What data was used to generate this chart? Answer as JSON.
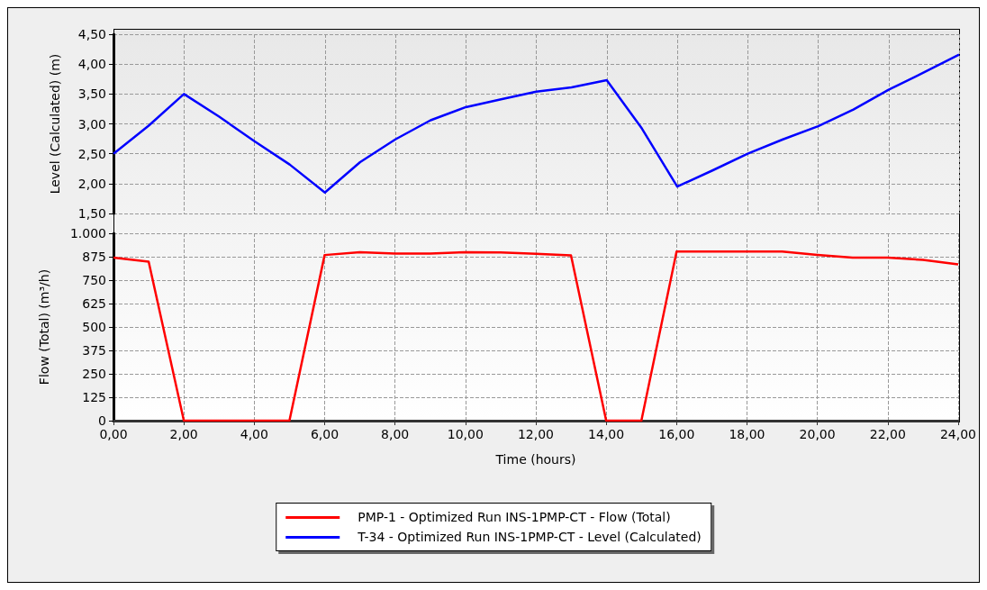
{
  "chart_data": [
    {
      "type": "line",
      "ylabel": "Level (Calculated) (m)",
      "x": [
        0,
        1,
        2,
        3,
        4,
        5,
        6,
        7,
        8,
        9,
        10,
        11,
        12,
        13,
        14,
        15,
        16,
        17,
        18,
        19,
        20,
        21,
        22,
        23,
        24
      ],
      "series": [
        {
          "name": "T-34 - Optimized Run INS-1PMP-CT - Level (Calculated)",
          "color": "#0000ff",
          "values": [
            2.5,
            2.97,
            3.5,
            3.12,
            2.71,
            2.32,
            1.85,
            2.36,
            2.74,
            3.06,
            3.28,
            3.41,
            3.54,
            3.61,
            3.73,
            2.92,
            1.95,
            2.22,
            2.5,
            2.74,
            2.96,
            3.24,
            3.57,
            3.86,
            4.16
          ]
        }
      ],
      "xlim": [
        0,
        24
      ],
      "ylim": [
        1.5,
        4.5
      ],
      "yticks": [
        {
          "value": 1.5,
          "label": "1,50"
        },
        {
          "value": 2,
          "label": "2,00"
        },
        {
          "value": 2.5,
          "label": "2,50"
        },
        {
          "value": 3,
          "label": "3,00"
        },
        {
          "value": 3.5,
          "label": "3,50"
        },
        {
          "value": 4,
          "label": "4,00"
        },
        {
          "value": 4.5,
          "label": "4,50"
        }
      ],
      "tick_labels": "y",
      "grid": true,
      "legend": "bottom",
      "line_style": "solid"
    },
    {
      "type": "line",
      "xlabel": "Time (hours)",
      "ylabel": "Flow (Total) (m³/h)",
      "x": [
        0,
        1,
        2,
        3,
        4,
        5,
        6,
        7,
        8,
        9,
        10,
        11,
        12,
        13,
        14,
        15,
        16,
        17,
        18,
        19,
        20,
        21,
        22,
        23,
        24
      ],
      "series": [
        {
          "name": "PMP-1 - Optimized Run INS-1PMP-CT - Flow (Total)",
          "color": "#ff0000",
          "values": [
            870,
            849,
            0,
            0,
            0,
            0,
            884,
            899,
            892,
            892,
            899,
            898,
            891,
            882,
            0,
            0,
            903,
            903,
            903,
            903,
            885,
            870,
            870,
            858,
            834
          ]
        }
      ],
      "xlim": [
        0,
        24
      ],
      "xticks": [
        {
          "value": 0,
          "label": "0,00"
        },
        {
          "value": 2,
          "label": "2,00"
        },
        {
          "value": 4,
          "label": "4,00"
        },
        {
          "value": 6,
          "label": "6,00"
        },
        {
          "value": 8,
          "label": "8,00"
        },
        {
          "value": 10,
          "label": "10,00"
        },
        {
          "value": 12,
          "label": "12,00"
        },
        {
          "value": 14,
          "label": "14,00"
        },
        {
          "value": 16,
          "label": "16,00"
        },
        {
          "value": 18,
          "label": "18,00"
        },
        {
          "value": 20,
          "label": "20,00"
        },
        {
          "value": 22,
          "label": "22,00"
        },
        {
          "value": 24,
          "label": "24,00"
        }
      ],
      "ylim": [
        0,
        1000
      ],
      "yticks": [
        0,
        125,
        250,
        375,
        500,
        625,
        750,
        875,
        {
          "value": 1000,
          "label": "1.000"
        }
      ],
      "grid": true,
      "legend": "bottom",
      "line_style": "solid"
    }
  ]
}
